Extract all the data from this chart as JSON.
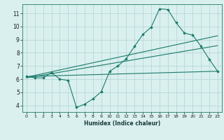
{
  "title": "",
  "xlabel": "Humidex (Indice chaleur)",
  "ylabel": "",
  "bg_color": "#d9f0ef",
  "grid_color": "#b8d8d8",
  "line_color": "#1a7a6a",
  "xlim": [
    -0.5,
    23.5
  ],
  "ylim": [
    3.5,
    11.7
  ],
  "xticks": [
    0,
    1,
    2,
    3,
    4,
    5,
    6,
    7,
    8,
    9,
    10,
    11,
    12,
    13,
    14,
    15,
    16,
    17,
    18,
    19,
    20,
    21,
    22,
    23
  ],
  "yticks": [
    4,
    5,
    6,
    7,
    8,
    9,
    10,
    11
  ],
  "line1_x": [
    0,
    1,
    2,
    3,
    4,
    5,
    6,
    7,
    8,
    9,
    10,
    11,
    12,
    13,
    14,
    15,
    16,
    17,
    18,
    19,
    20,
    21,
    22,
    23
  ],
  "line1_y": [
    6.2,
    6.1,
    6.1,
    6.5,
    6.0,
    5.9,
    3.85,
    4.1,
    4.5,
    5.05,
    6.6,
    7.0,
    7.55,
    8.5,
    9.4,
    9.95,
    11.35,
    11.3,
    10.3,
    9.5,
    9.35,
    8.5,
    7.5,
    6.6
  ],
  "line2_x": [
    0,
    23
  ],
  "line2_y": [
    6.2,
    6.6
  ],
  "line3_x": [
    0,
    23
  ],
  "line3_y": [
    6.15,
    9.3
  ],
  "line4_x": [
    0,
    23
  ],
  "line4_y": [
    6.1,
    8.55
  ]
}
